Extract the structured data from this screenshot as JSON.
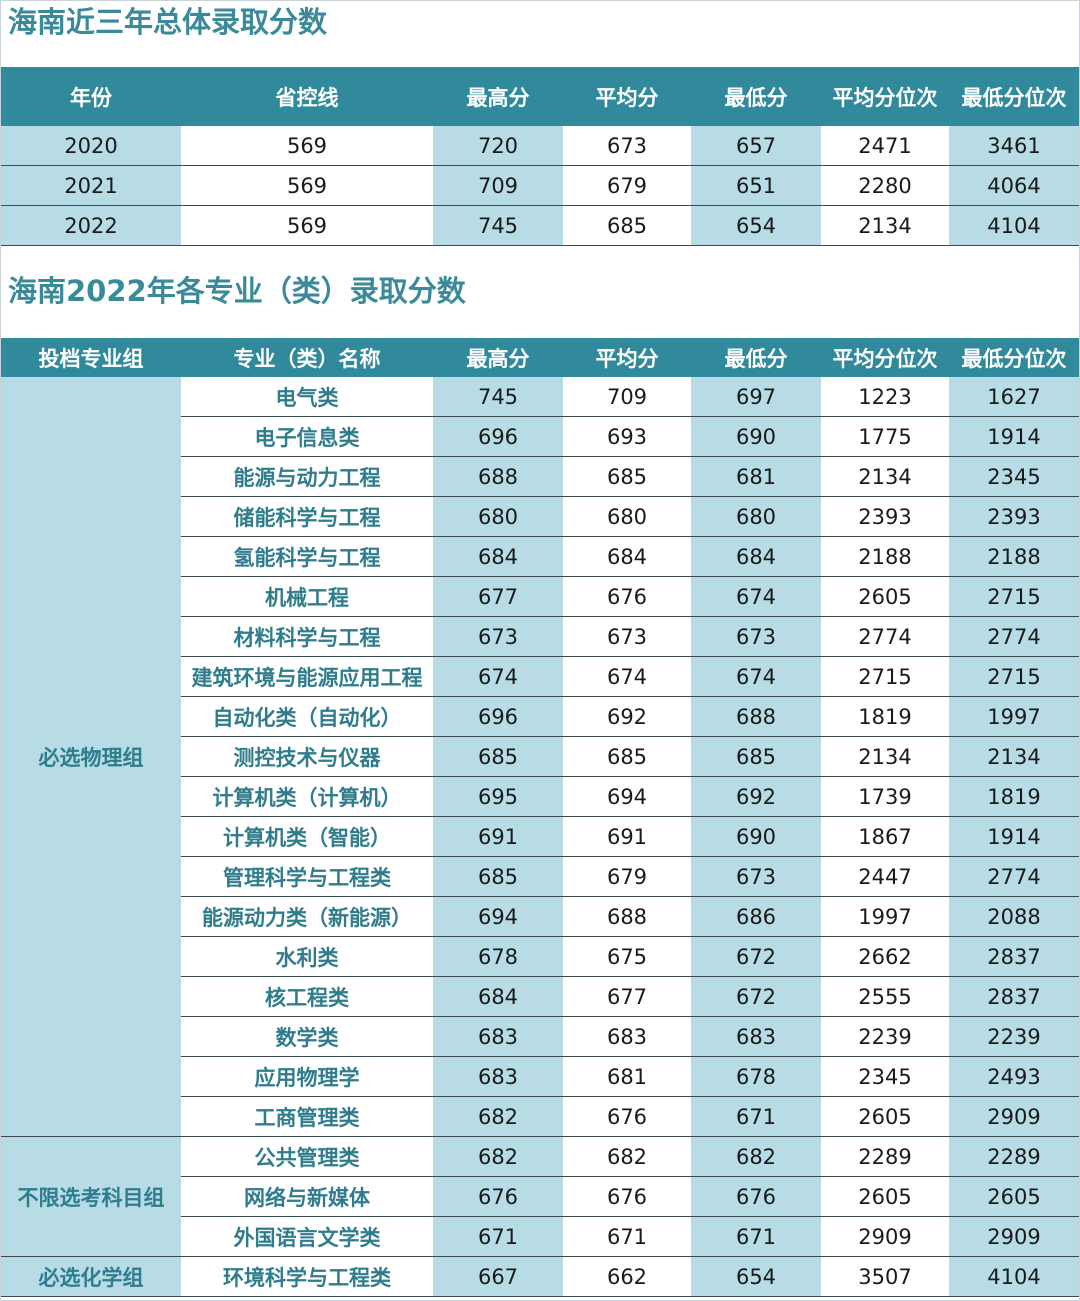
{
  "section1": {
    "title": "海南近三年总体录取分数",
    "headers": [
      "年份",
      "省控线",
      "最高分",
      "平均分",
      "最低分",
      "平均分位次",
      "最低分位次"
    ],
    "rows": [
      [
        "2020",
        "569",
        "720",
        "673",
        "657",
        "2471",
        "3461"
      ],
      [
        "2021",
        "569",
        "709",
        "679",
        "651",
        "2280",
        "4064"
      ],
      [
        "2022",
        "569",
        "745",
        "685",
        "654",
        "2134",
        "4104"
      ]
    ]
  },
  "section2": {
    "title": "海南2022年各专业（类）录取分数",
    "headers": [
      "投档专业组",
      "专业（类）名称",
      "最高分",
      "平均分",
      "最低分",
      "平均分位次",
      "最低分位次"
    ],
    "groups": [
      {
        "name": "必选物理组",
        "rows": [
          [
            "电气类",
            "745",
            "709",
            "697",
            "1223",
            "1627"
          ],
          [
            "电子信息类",
            "696",
            "693",
            "690",
            "1775",
            "1914"
          ],
          [
            "能源与动力工程",
            "688",
            "685",
            "681",
            "2134",
            "2345"
          ],
          [
            "储能科学与工程",
            "680",
            "680",
            "680",
            "2393",
            "2393"
          ],
          [
            "氢能科学与工程",
            "684",
            "684",
            "684",
            "2188",
            "2188"
          ],
          [
            "机械工程",
            "677",
            "676",
            "674",
            "2605",
            "2715"
          ],
          [
            "材料科学与工程",
            "673",
            "673",
            "673",
            "2774",
            "2774"
          ],
          [
            "建筑环境与能源应用工程",
            "674",
            "674",
            "674",
            "2715",
            "2715"
          ],
          [
            "自动化类（自动化）",
            "696",
            "692",
            "688",
            "1819",
            "1997"
          ],
          [
            "测控技术与仪器",
            "685",
            "685",
            "685",
            "2134",
            "2134"
          ],
          [
            "计算机类（计算机）",
            "695",
            "694",
            "692",
            "1739",
            "1819"
          ],
          [
            "计算机类（智能）",
            "691",
            "691",
            "690",
            "1867",
            "1914"
          ],
          [
            "管理科学与工程类",
            "685",
            "679",
            "673",
            "2447",
            "2774"
          ],
          [
            "能源动力类（新能源）",
            "694",
            "688",
            "686",
            "1997",
            "2088"
          ],
          [
            "水利类",
            "678",
            "675",
            "672",
            "2662",
            "2837"
          ],
          [
            "核工程类",
            "684",
            "677",
            "672",
            "2555",
            "2837"
          ],
          [
            "数学类",
            "683",
            "683",
            "683",
            "2239",
            "2239"
          ],
          [
            "应用物理学",
            "683",
            "681",
            "678",
            "2345",
            "2493"
          ],
          [
            "工商管理类",
            "682",
            "676",
            "671",
            "2605",
            "2909"
          ]
        ]
      },
      {
        "name": "不限选考科目组",
        "rows": [
          [
            "公共管理类",
            "682",
            "682",
            "682",
            "2289",
            "2289"
          ],
          [
            "网络与新媒体",
            "676",
            "676",
            "676",
            "2605",
            "2605"
          ],
          [
            "外国语言文学类",
            "671",
            "671",
            "671",
            "2909",
            "2909"
          ]
        ]
      },
      {
        "name": "必选化学组",
        "rows": [
          [
            "环境科学与工程类",
            "667",
            "662",
            "654",
            "3507",
            "4104"
          ]
        ]
      }
    ]
  }
}
